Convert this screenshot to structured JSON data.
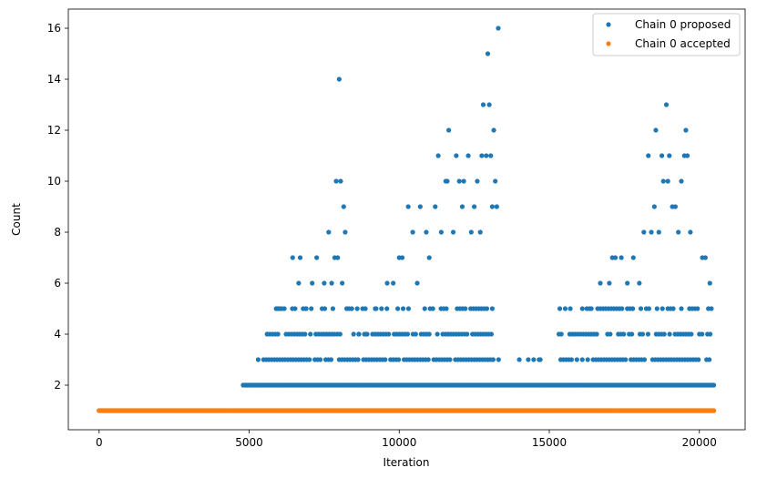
{
  "chart_data": {
    "type": "scatter",
    "xlabel": "Iteration",
    "ylabel": "Count",
    "xlim": [
      -1025,
      21525
    ],
    "ylim": [
      0.25,
      16.75
    ],
    "xticks": [
      0,
      5000,
      10000,
      15000,
      20000
    ],
    "yticks": [
      2,
      4,
      6,
      8,
      10,
      12,
      14,
      16
    ],
    "grid": false,
    "legend_position": "top-right",
    "series": [
      {
        "name": "Chain 0 proposed",
        "color": "#1f77b4",
        "marker": "dot",
        "note_levels": "dense bands at counts 1-7 between iterations ~4800-20500 (gap near 13300-15300 above count 2)",
        "bands": [
          {
            "y": 1,
            "x_range": [
              0,
              20500
            ]
          },
          {
            "y": 2,
            "x_range": [
              4800,
              20500
            ]
          },
          {
            "y": 3,
            "x_range": [
              5300,
              20500
            ]
          },
          {
            "y": 4,
            "x_range": [
              5600,
              20500
            ]
          },
          {
            "y": 5,
            "x_range": [
              5900,
              20450
            ]
          }
        ],
        "points": [
          [
            5600,
            4
          ],
          [
            5950,
            5
          ],
          [
            6050,
            5
          ],
          [
            6450,
            7
          ],
          [
            6650,
            6
          ],
          [
            6700,
            7
          ],
          [
            6900,
            5
          ],
          [
            7100,
            6
          ],
          [
            7250,
            7
          ],
          [
            7500,
            6
          ],
          [
            7650,
            8
          ],
          [
            7750,
            6
          ],
          [
            7850,
            7
          ],
          [
            7900,
            10
          ],
          [
            7950,
            7
          ],
          [
            8000,
            14
          ],
          [
            8050,
            10
          ],
          [
            8100,
            6
          ],
          [
            8150,
            9
          ],
          [
            8200,
            8
          ],
          [
            8250,
            5
          ],
          [
            8650,
            4
          ],
          [
            8900,
            4
          ],
          [
            9200,
            5
          ],
          [
            9600,
            6
          ],
          [
            9800,
            6
          ],
          [
            10000,
            7
          ],
          [
            10100,
            7
          ],
          [
            10300,
            9
          ],
          [
            10450,
            8
          ],
          [
            10600,
            6
          ],
          [
            10700,
            9
          ],
          [
            10900,
            8
          ],
          [
            11000,
            7
          ],
          [
            11200,
            9
          ],
          [
            11300,
            11
          ],
          [
            11400,
            8
          ],
          [
            11550,
            10
          ],
          [
            11600,
            10
          ],
          [
            11650,
            12
          ],
          [
            11800,
            8
          ],
          [
            11900,
            11
          ],
          [
            12000,
            10
          ],
          [
            12100,
            9
          ],
          [
            12150,
            10
          ],
          [
            12300,
            11
          ],
          [
            12400,
            8
          ],
          [
            12500,
            9
          ],
          [
            12600,
            10
          ],
          [
            12700,
            8
          ],
          [
            12750,
            11
          ],
          [
            12800,
            13
          ],
          [
            12900,
            11
          ],
          [
            12950,
            15
          ],
          [
            13000,
            13
          ],
          [
            13050,
            11
          ],
          [
            13100,
            9
          ],
          [
            13150,
            12
          ],
          [
            13200,
            10
          ],
          [
            13250,
            9
          ],
          [
            13300,
            16
          ],
          [
            14000,
            3
          ],
          [
            14300,
            3
          ],
          [
            14700,
            3
          ],
          [
            15400,
            4
          ],
          [
            15700,
            5
          ],
          [
            16100,
            5
          ],
          [
            16400,
            5
          ],
          [
            16700,
            6
          ],
          [
            17000,
            6
          ],
          [
            17100,
            7
          ],
          [
            17200,
            7
          ],
          [
            17400,
            7
          ],
          [
            17600,
            6
          ],
          [
            17800,
            7
          ],
          [
            18000,
            6
          ],
          [
            18150,
            8
          ],
          [
            18300,
            11
          ],
          [
            18400,
            8
          ],
          [
            18500,
            9
          ],
          [
            18550,
            12
          ],
          [
            18650,
            8
          ],
          [
            18750,
            11
          ],
          [
            18800,
            10
          ],
          [
            18900,
            13
          ],
          [
            18950,
            10
          ],
          [
            19000,
            11
          ],
          [
            19100,
            9
          ],
          [
            19200,
            9
          ],
          [
            19300,
            8
          ],
          [
            19400,
            10
          ],
          [
            19500,
            11
          ],
          [
            19550,
            12
          ],
          [
            19600,
            11
          ],
          [
            19700,
            8
          ],
          [
            20100,
            7
          ],
          [
            20200,
            7
          ],
          [
            20350,
            6
          ],
          [
            20400,
            5
          ]
        ]
      },
      {
        "name": "Chain 0 accepted",
        "color": "#ff7f0e",
        "marker": "dot",
        "bands": [
          {
            "y": 1,
            "x_range": [
              0,
              20500
            ]
          }
        ],
        "points": []
      }
    ]
  }
}
